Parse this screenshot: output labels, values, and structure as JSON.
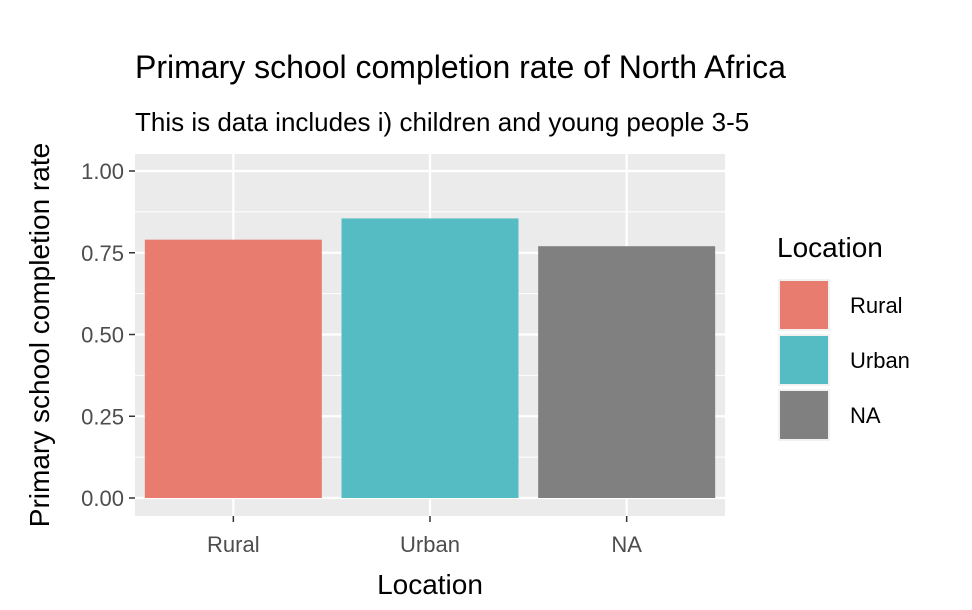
{
  "chart_data": {
    "type": "bar",
    "title": "Primary school completion rate of North Africa",
    "subtitle": "This is data includes i) children and young people 3-5",
    "xlabel": "Location",
    "ylabel": "Primary school completion rate",
    "categories": [
      "Rural",
      "Urban",
      "NA"
    ],
    "values": [
      0.79,
      0.855,
      0.77
    ],
    "colors": [
      "#E87C6F",
      "#56BCC4",
      "#808080"
    ],
    "ylim": [
      0,
      1.04
    ],
    "yticks": [
      0,
      0.25,
      0.5,
      0.75,
      1
    ],
    "ytick_labels": [
      "0.00",
      "0.25",
      "0.50",
      "0.75",
      "1.00"
    ],
    "grid": true,
    "legend": {
      "title": "Location",
      "placement": "right",
      "entries": [
        "Rural",
        "Urban",
        "NA"
      ]
    }
  }
}
